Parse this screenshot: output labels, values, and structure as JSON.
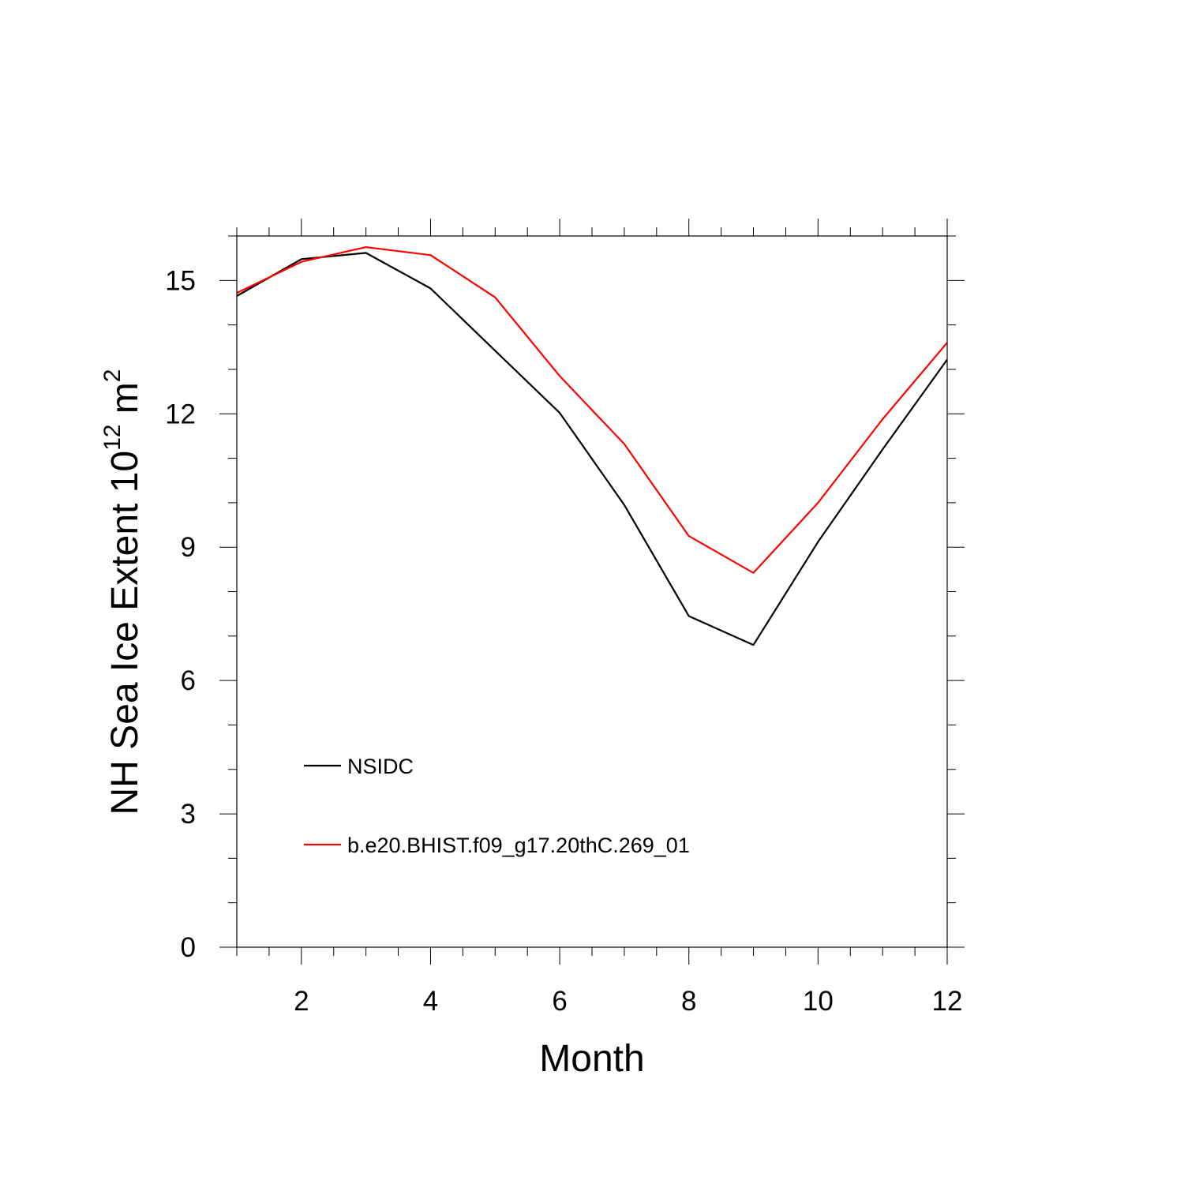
{
  "chart_data": {
    "type": "line",
    "title": "",
    "xlabel": "Month",
    "ylabel": {
      "base": "NH Sea Ice Extent 10",
      "exponent": "12",
      "unit": " m",
      "unit_exponent": "2"
    },
    "xlim": [
      1,
      12
    ],
    "ylim": [
      0,
      16
    ],
    "xticks": [
      2,
      4,
      6,
      8,
      10,
      12
    ],
    "xtick_labels": [
      "2",
      "4",
      "6",
      "8",
      "10",
      "12"
    ],
    "yticks": [
      0,
      3,
      6,
      9,
      12,
      15
    ],
    "ytick_labels": [
      "0",
      "3",
      "6",
      "9",
      "12",
      "15"
    ],
    "grid": false,
    "legend_position": "lower-left",
    "x": [
      1,
      2,
      3,
      4,
      5,
      6,
      7,
      8,
      9,
      10,
      11,
      12
    ],
    "series": [
      {
        "name": "NSIDC",
        "color": "#000000",
        "values": [
          14.65,
          15.48,
          15.62,
          14.82,
          13.42,
          12.02,
          9.95,
          7.45,
          6.8,
          9.12,
          11.2,
          13.22
        ]
      },
      {
        "name": "b.e20.BHIST.f09_g17.20thC.269_01",
        "color": "#ff0000",
        "values": [
          14.72,
          15.42,
          15.75,
          15.57,
          14.62,
          12.85,
          11.32,
          9.25,
          8.42,
          10.0,
          11.88,
          13.6
        ]
      }
    ]
  }
}
